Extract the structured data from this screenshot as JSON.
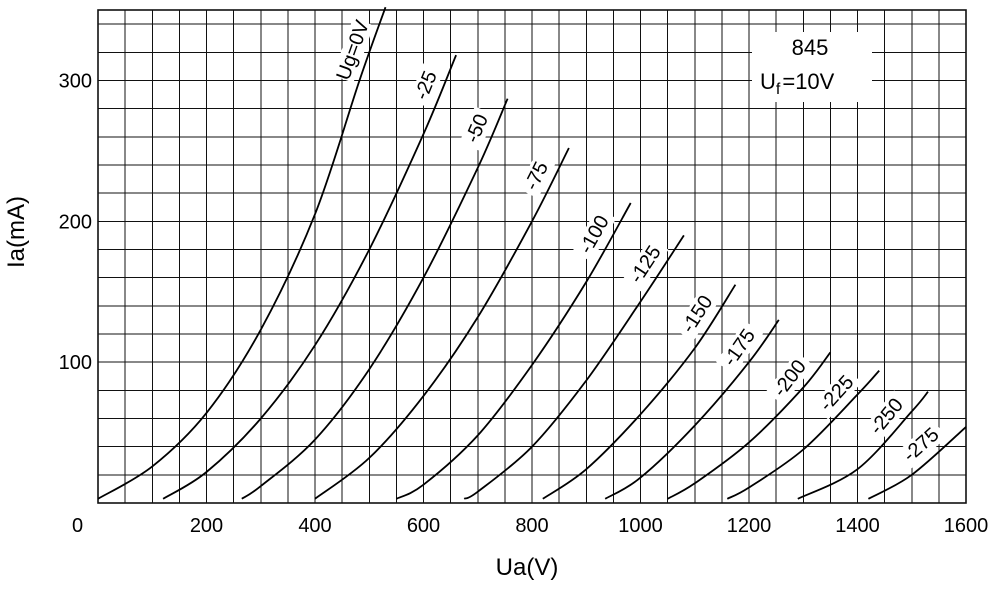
{
  "chart_data": {
    "type": "line",
    "title": "",
    "xlabel": "Ua(V)",
    "ylabel": "Ia(mA)",
    "xlim": [
      0,
      1600
    ],
    "ylim": [
      0,
      350
    ],
    "x_ticks": [
      "0",
      "200",
      "400",
      "600",
      "800",
      "1000",
      "1200",
      "1400",
      "1600"
    ],
    "y_ticks": [
      "100",
      "200",
      "300"
    ],
    "grid": true,
    "annotation": {
      "tube": "845",
      "filament_prefix": "U",
      "filament_sub": "f",
      "filament_value": "=10V"
    },
    "series": [
      {
        "name": "Ug=0V",
        "label": "Ug=0V",
        "points": [
          [
            0,
            3
          ],
          [
            100,
            26
          ],
          [
            200,
            64
          ],
          [
            300,
            123
          ],
          [
            400,
            205
          ],
          [
            482,
            300
          ],
          [
            530,
            352
          ]
        ]
      },
      {
        "name": "-25",
        "label": "-25",
        "points": [
          [
            120,
            3
          ],
          [
            200,
            22
          ],
          [
            300,
            60
          ],
          [
            400,
            112
          ],
          [
            500,
            180
          ],
          [
            600,
            262
          ],
          [
            660,
            318
          ]
        ]
      },
      {
        "name": "-50",
        "label": "-50",
        "points": [
          [
            265,
            3
          ],
          [
            300,
            12
          ],
          [
            400,
            45
          ],
          [
            500,
            95
          ],
          [
            600,
            160
          ],
          [
            700,
            238
          ],
          [
            755,
            287
          ]
        ]
      },
      {
        "name": "-75",
        "label": "-75",
        "points": [
          [
            400,
            3
          ],
          [
            500,
            32
          ],
          [
            600,
            76
          ],
          [
            700,
            132
          ],
          [
            800,
            200
          ],
          [
            868,
            252
          ]
        ]
      },
      {
        "name": "-100",
        "label": "-100",
        "points": [
          [
            550,
            3
          ],
          [
            600,
            13
          ],
          [
            700,
            48
          ],
          [
            800,
            98
          ],
          [
            900,
            157
          ],
          [
            982,
            213
          ]
        ]
      },
      {
        "name": "-125",
        "label": "-125",
        "points": [
          [
            675,
            3
          ],
          [
            700,
            8
          ],
          [
            800,
            40
          ],
          [
            900,
            87
          ],
          [
            1000,
            143
          ],
          [
            1080,
            190
          ]
        ]
      },
      {
        "name": "-150",
        "label": "-150",
        "points": [
          [
            820,
            3
          ],
          [
            900,
            24
          ],
          [
            1000,
            63
          ],
          [
            1100,
            110
          ],
          [
            1175,
            155
          ]
        ]
      },
      {
        "name": "-175",
        "label": "-175",
        "points": [
          [
            935,
            3
          ],
          [
            1000,
            18
          ],
          [
            1100,
            55
          ],
          [
            1200,
            100
          ],
          [
            1255,
            130
          ]
        ]
      },
      {
        "name": "-200",
        "label": "-200",
        "points": [
          [
            1050,
            3
          ],
          [
            1100,
            14
          ],
          [
            1200,
            43
          ],
          [
            1300,
            82
          ],
          [
            1350,
            107
          ]
        ]
      },
      {
        "name": "-225",
        "label": "-225",
        "points": [
          [
            1160,
            3
          ],
          [
            1200,
            11
          ],
          [
            1300,
            38
          ],
          [
            1400,
            77
          ],
          [
            1440,
            94
          ]
        ]
      },
      {
        "name": "-250",
        "label": "-250",
        "points": [
          [
            1290,
            3
          ],
          [
            1400,
            24
          ],
          [
            1500,
            65
          ],
          [
            1530,
            79
          ]
        ]
      },
      {
        "name": "-275",
        "label": "-275",
        "points": [
          [
            1420,
            3
          ],
          [
            1500,
            20
          ],
          [
            1600,
            54
          ]
        ]
      }
    ]
  }
}
